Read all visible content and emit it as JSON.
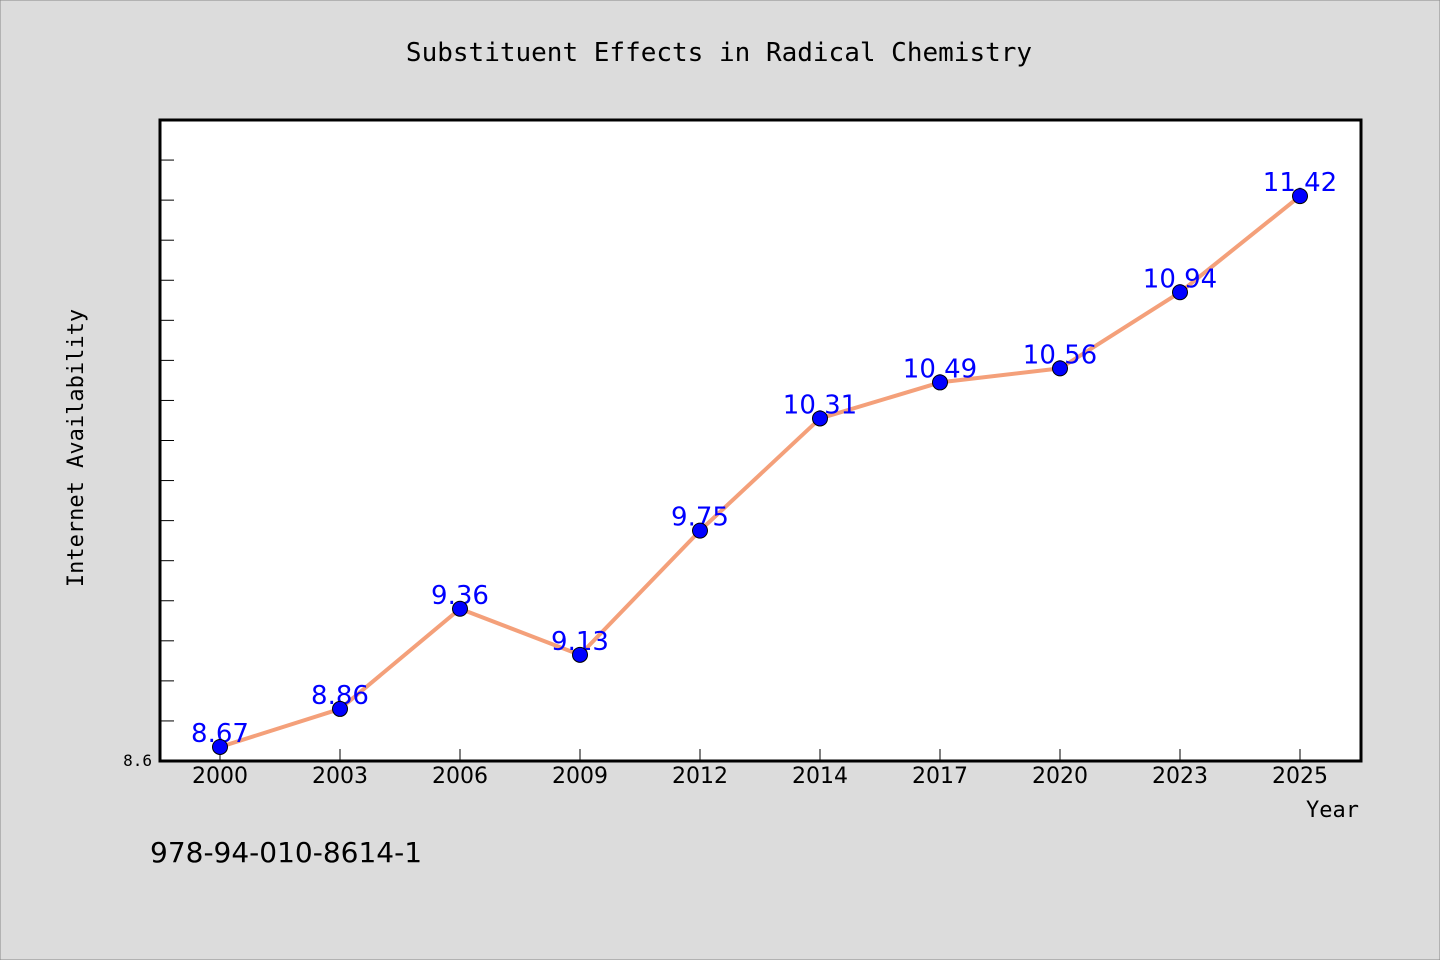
{
  "footnote": "978-94-010-8614-1",
  "colors": {
    "background": "#dcdcdc",
    "plot_background": "#ffffff",
    "line": "#f4a07a",
    "marker": "#0000ff",
    "label": "#0000ff"
  },
  "chart_data": {
    "type": "line",
    "title": "Substituent Effects in Radical Chemistry",
    "xlabel": "Year",
    "ylabel": "Internet Availability",
    "categories": [
      "2000",
      "2003",
      "2006",
      "2009",
      "2012",
      "2014",
      "2017",
      "2020",
      "2023",
      "2025"
    ],
    "series": [
      {
        "values": [
          8.67,
          8.86,
          9.36,
          9.13,
          9.75,
          10.31,
          10.49,
          10.56,
          10.94,
          11.42
        ]
      }
    ],
    "ylim": [
      8.6,
      11.8
    ],
    "yticks_labeled": [
      "8.6"
    ],
    "grid": false,
    "legend": "none"
  }
}
